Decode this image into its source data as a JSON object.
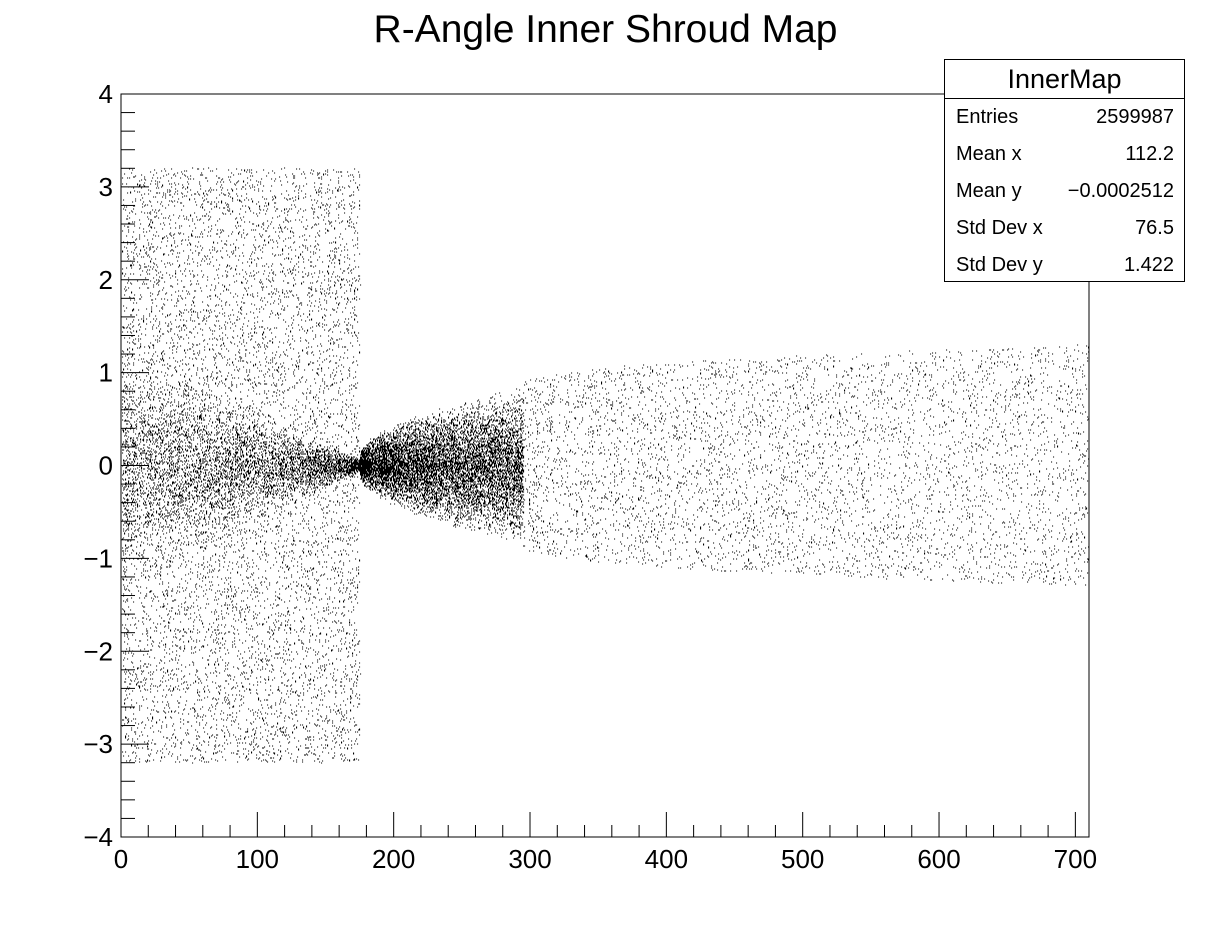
{
  "chart_data": {
    "type": "scatter",
    "title": "R-Angle Inner Shroud Map",
    "xlabel": "",
    "ylabel": "",
    "xlim": [
      0,
      710
    ],
    "ylim": [
      -4,
      4
    ],
    "x_ticks": [
      "0",
      "100",
      "200",
      "300",
      "400",
      "500",
      "600",
      "700"
    ],
    "y_ticks": [
      "−4",
      "−3",
      "−2",
      "−1",
      "0",
      "1",
      "2",
      "3",
      "4"
    ],
    "grid": false,
    "marker_color": "#000000",
    "regions": [
      {
        "x_range": [
          0,
          175
        ],
        "y_envelope_start": 3.2,
        "y_envelope_end": 0.1,
        "density": "high",
        "fill": "full-band"
      },
      {
        "x_range": [
          175,
          295
        ],
        "y_envelope_start": 0.1,
        "y_envelope_end": 0.85,
        "density": "medium"
      },
      {
        "x_range": [
          295,
          710
        ],
        "y_envelope_start": 0.9,
        "y_envelope_end": 1.3,
        "density": "low"
      }
    ],
    "stats_box": {
      "title": "InnerMap",
      "entries": [
        {
          "label": "Entries",
          "value": "2599987"
        },
        {
          "label": "Mean x",
          "value": "112.2"
        },
        {
          "label": "Mean y",
          "value": "−0.0002512"
        },
        {
          "label": "Std Dev x",
          "value": "76.5"
        },
        {
          "label": "Std Dev y",
          "value": "1.422"
        }
      ]
    }
  }
}
